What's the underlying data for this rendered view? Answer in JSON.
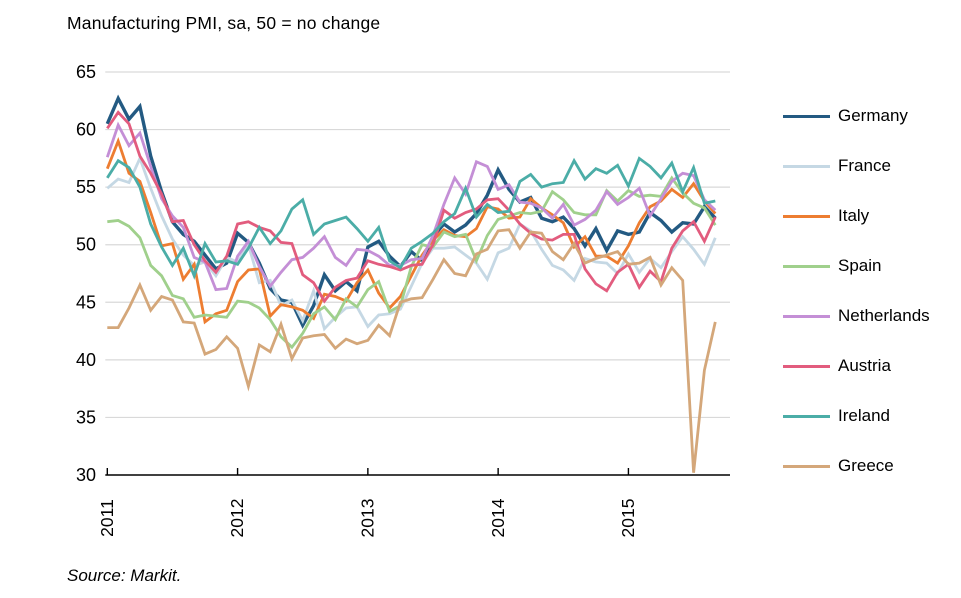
{
  "chart_data": {
    "type": "line",
    "title": "Manufacturing PMI, sa, 50 = no change",
    "source": "Source: Markit.",
    "x_tick_labels": [
      "2011",
      "2012",
      "2013",
      "2014",
      "2015"
    ],
    "x_frequency": "monthly",
    "x_range": [
      "Jan 2011",
      "Sep 2015"
    ],
    "y_ticks": [
      30,
      35,
      40,
      45,
      50,
      55,
      60,
      65
    ],
    "ylim": [
      30,
      65
    ],
    "grid": "horizontal-only",
    "grid_color": "#d9d9d9",
    "axis_color": "#000000",
    "legend_position": "right",
    "series": [
      {
        "name": "Germany",
        "color": "#235a82",
        "values": [
          60.5,
          62.7,
          60.9,
          62.0,
          57.7,
          54.6,
          52.0,
          50.9,
          50.3,
          49.1,
          47.9,
          48.4,
          51.0,
          50.2,
          48.4,
          46.2,
          45.2,
          45.0,
          43.0,
          44.7,
          47.4,
          46.0,
          46.8,
          46.0,
          49.8,
          50.3,
          49.0,
          48.1,
          49.4,
          48.6,
          50.7,
          51.8,
          51.1,
          51.7,
          52.7,
          54.3,
          56.5,
          54.8,
          53.7,
          54.1,
          52.3,
          52.0,
          52.4,
          51.4,
          49.9,
          51.4,
          49.5,
          51.2,
          50.9,
          51.1,
          52.8,
          52.1,
          51.1,
          51.9,
          51.8,
          53.3,
          52.3
        ]
      },
      {
        "name": "France",
        "color": "#c5d8e4",
        "values": [
          54.9,
          55.7,
          55.4,
          57.5,
          54.9,
          52.5,
          50.5,
          49.1,
          48.2,
          48.5,
          47.3,
          48.9,
          48.5,
          50.0,
          46.7,
          46.9,
          44.7,
          45.2,
          43.4,
          46.0,
          42.7,
          43.7,
          44.5,
          44.6,
          42.9,
          43.9,
          44.0,
          44.4,
          46.4,
          48.4,
          49.7,
          49.7,
          49.8,
          49.1,
          48.4,
          47.0,
          49.3,
          49.7,
          51.8,
          51.2,
          49.6,
          48.2,
          47.8,
          46.9,
          48.8,
          48.5,
          48.4,
          47.5,
          49.2,
          47.6,
          48.8,
          48.0,
          49.4,
          50.7,
          49.6,
          48.3,
          50.6
        ]
      },
      {
        "name": "Italy",
        "color": "#ed7d31",
        "values": [
          56.6,
          59.0,
          56.2,
          55.5,
          52.8,
          49.9,
          50.1,
          47.0,
          48.3,
          43.3,
          44.0,
          44.3,
          46.8,
          47.8,
          47.9,
          43.8,
          44.8,
          44.6,
          44.3,
          43.6,
          45.7,
          45.5,
          45.1,
          46.7,
          47.8,
          45.8,
          44.5,
          45.5,
          47.3,
          49.1,
          50.4,
          51.3,
          50.8,
          50.7,
          51.4,
          53.3,
          53.1,
          52.3,
          52.4,
          54.0,
          53.2,
          52.6,
          51.9,
          49.8,
          50.7,
          49.0,
          49.0,
          48.4,
          49.9,
          51.9,
          53.3,
          53.8,
          54.8,
          54.1,
          55.3,
          53.8,
          52.7
        ]
      },
      {
        "name": "Spain",
        "color": "#a0d08c",
        "values": [
          52.0,
          52.1,
          51.6,
          50.6,
          48.2,
          47.3,
          45.6,
          45.3,
          43.7,
          43.9,
          43.8,
          43.7,
          45.1,
          45.0,
          44.5,
          43.5,
          42.0,
          41.1,
          42.3,
          44.0,
          44.6,
          43.5,
          45.3,
          44.6,
          46.1,
          46.8,
          44.2,
          44.7,
          48.1,
          50.0,
          49.8,
          51.1,
          50.7,
          50.9,
          48.6,
          50.8,
          52.2,
          52.5,
          52.8,
          52.7,
          52.9,
          54.6,
          53.9,
          52.8,
          52.6,
          52.6,
          54.7,
          53.8,
          54.7,
          54.2,
          54.3,
          54.2,
          55.8,
          54.5,
          53.6,
          53.2,
          51.7
        ]
      },
      {
        "name": "Netherlands",
        "color": "#c48fd6",
        "values": [
          57.6,
          60.4,
          58.6,
          59.7,
          56.8,
          54.0,
          52.5,
          51.5,
          48.9,
          48.5,
          46.1,
          46.2,
          49.0,
          50.3,
          48.1,
          46.4,
          47.6,
          48.7,
          48.9,
          49.7,
          50.7,
          48.9,
          48.2,
          49.6,
          49.5,
          49.0,
          48.2,
          48.2,
          48.7,
          48.8,
          50.8,
          53.5,
          55.8,
          54.4,
          57.2,
          56.8,
          54.8,
          55.2,
          53.7,
          53.6,
          53.2,
          52.3,
          53.5,
          51.7,
          52.2,
          53.0,
          54.6,
          53.5,
          54.1,
          54.9,
          52.5,
          54.0,
          55.5,
          56.2,
          56.0,
          53.9,
          53.0
        ]
      },
      {
        "name": "Austria",
        "color": "#e25c7e",
        "values": [
          60.1,
          61.5,
          60.5,
          57.7,
          56.2,
          54.4,
          52.0,
          52.1,
          50.0,
          48.6,
          47.6,
          49.0,
          51.8,
          52.0,
          51.5,
          51.2,
          50.2,
          50.1,
          47.4,
          46.7,
          45.1,
          46.3,
          46.9,
          47.1,
          48.6,
          48.3,
          48.1,
          47.8,
          48.2,
          48.3,
          50.0,
          53.0,
          52.3,
          52.8,
          53.1,
          53.9,
          54.0,
          53.0,
          51.8,
          51.0,
          50.5,
          50.4,
          50.9,
          50.9,
          47.9,
          46.6,
          46.0,
          47.6,
          48.3,
          46.3,
          47.7,
          46.8,
          49.7,
          51.2,
          52.0,
          50.3,
          52.4
        ]
      },
      {
        "name": "Ireland",
        "color": "#4bada7",
        "values": [
          55.8,
          57.3,
          56.7,
          55.0,
          51.8,
          49.8,
          48.2,
          49.7,
          47.3,
          50.1,
          48.5,
          48.6,
          48.3,
          49.7,
          51.5,
          50.1,
          51.2,
          53.1,
          53.9,
          50.9,
          51.8,
          52.1,
          52.4,
          51.4,
          50.3,
          51.5,
          48.6,
          48.0,
          49.7,
          50.3,
          51.0,
          52.0,
          52.7,
          54.9,
          52.4,
          53.5,
          52.8,
          52.9,
          55.5,
          56.1,
          55.0,
          55.3,
          55.4,
          57.3,
          55.7,
          56.6,
          56.2,
          56.9,
          55.1,
          57.5,
          56.8,
          55.8,
          57.1,
          54.6,
          56.7,
          53.6,
          53.8
        ]
      },
      {
        "name": "Greece",
        "color": "#d4a77a",
        "values": [
          42.8,
          42.8,
          44.5,
          46.5,
          44.3,
          45.5,
          45.2,
          43.3,
          43.2,
          40.5,
          40.9,
          42.0,
          41.0,
          37.7,
          41.3,
          40.7,
          43.1,
          40.1,
          41.9,
          42.1,
          42.2,
          41.0,
          41.8,
          41.4,
          41.7,
          43.0,
          42.1,
          45.0,
          45.3,
          45.4,
          47.0,
          48.7,
          47.5,
          47.3,
          49.2,
          49.6,
          51.2,
          51.3,
          49.7,
          51.1,
          51.0,
          49.4,
          48.7,
          50.1,
          48.4,
          48.8,
          49.1,
          49.4,
          48.3,
          48.4,
          48.9,
          46.5,
          48.0,
          46.9,
          30.2,
          39.1,
          43.3
        ]
      }
    ]
  }
}
